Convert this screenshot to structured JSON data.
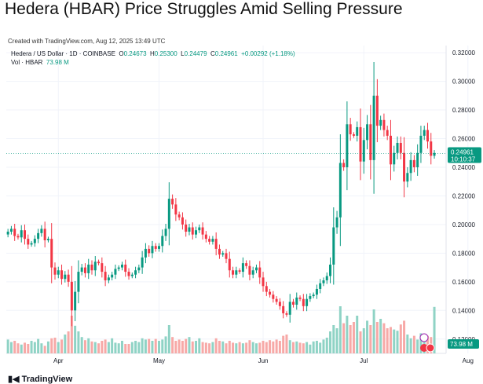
{
  "headline": "Hedera (HBAR) Price Struggles Amid Selling Pressure",
  "created_note": "Created with TradingView.com, Aug 12, 2025 13:49 UTC",
  "legend": {
    "symbol": "Hedera / US Dollar · 1D · COINBASE",
    "o_label": "O",
    "o": "0.24673",
    "h_label": "H",
    "h": "0.25300",
    "l_label": "L",
    "l": "0.24479",
    "c_label": "C",
    "c": "0.24961",
    "change": "+0.00292 (+1.18%)",
    "vol_label": "Vol · HBAR",
    "vol": "73.98 M"
  },
  "price_badge": {
    "value": "0.24961",
    "countdown": "10:10:37"
  },
  "vol_badge": "73.98 M",
  "brand": "TradingView",
  "colors": {
    "up": "#089981",
    "down": "#f23645",
    "up_vol": "#8fd3c5",
    "down_vol": "#f7a9a7",
    "grid": "#f0f3fa",
    "axis_text": "#131722"
  },
  "chart_data": {
    "type": "candlestick",
    "symbol": "HBAR/USD",
    "timeframe": "1D",
    "x_tick_labels": [
      "Apr",
      "May",
      "Jun",
      "Jul",
      "Aug"
    ],
    "y_tick_labels": [
      "0.32000",
      "0.30000",
      "0.28000",
      "0.26000",
      "0.24000",
      "0.22000",
      "0.20000",
      "0.18000",
      "0.16000",
      "0.14000",
      "0.12000"
    ],
    "ylim": [
      0.11,
      0.325
    ],
    "last_price": 0.24961,
    "grid": true,
    "close": [
      0.195,
      0.197,
      0.192,
      0.191,
      0.196,
      0.19,
      0.186,
      0.187,
      0.19,
      0.194,
      0.197,
      0.189,
      0.19,
      0.17,
      0.165,
      0.168,
      0.162,
      0.165,
      0.16,
      0.14,
      0.153,
      0.167,
      0.17,
      0.166,
      0.172,
      0.168,
      0.174,
      0.173,
      0.167,
      0.161,
      0.163,
      0.165,
      0.169,
      0.17,
      0.172,
      0.167,
      0.164,
      0.165,
      0.168,
      0.17,
      0.177,
      0.183,
      0.18,
      0.185,
      0.183,
      0.185,
      0.192,
      0.197,
      0.218,
      0.214,
      0.207,
      0.205,
      0.2,
      0.195,
      0.198,
      0.193,
      0.196,
      0.198,
      0.193,
      0.19,
      0.188,
      0.19,
      0.183,
      0.179,
      0.18,
      0.176,
      0.168,
      0.165,
      0.168,
      0.167,
      0.173,
      0.171,
      0.165,
      0.168,
      0.17,
      0.163,
      0.157,
      0.153,
      0.151,
      0.148,
      0.146,
      0.143,
      0.138,
      0.137,
      0.146,
      0.144,
      0.149,
      0.148,
      0.143,
      0.148,
      0.15,
      0.151,
      0.155,
      0.159,
      0.161,
      0.164,
      0.172,
      0.198,
      0.205,
      0.243,
      0.24,
      0.27,
      0.263,
      0.262,
      0.268,
      0.244,
      0.259,
      0.27,
      0.245,
      0.29,
      0.269,
      0.273,
      0.266,
      0.262,
      0.242,
      0.25,
      0.257,
      0.25,
      0.23,
      0.236,
      0.245,
      0.24,
      0.25,
      0.262,
      0.266,
      0.258,
      0.248,
      0.25
    ],
    "volume_M": [
      22,
      18,
      20,
      16,
      14,
      17,
      15,
      20,
      18,
      23,
      16,
      12,
      19,
      24,
      25,
      18,
      22,
      30,
      35,
      60,
      44,
      35,
      26,
      21,
      24,
      19,
      18,
      16,
      20,
      22,
      18,
      24,
      17,
      16,
      20,
      15,
      15,
      18,
      20,
      18,
      24,
      22,
      23,
      20,
      23,
      20,
      22,
      27,
      45,
      26,
      20,
      22,
      20,
      23,
      26,
      19,
      20,
      24,
      18,
      17,
      16,
      18,
      24,
      20,
      19,
      16,
      20,
      17,
      16,
      18,
      16,
      17,
      21,
      18,
      16,
      17,
      20,
      18,
      21,
      19,
      22,
      20,
      28,
      30,
      21,
      18,
      19,
      17,
      16,
      18,
      14,
      19,
      20,
      17,
      22,
      25,
      35,
      45,
      40,
      75,
      48,
      60,
      45,
      50,
      60,
      35,
      40,
      52,
      45,
      70,
      50,
      55,
      48,
      40,
      42,
      38,
      36,
      46,
      52,
      30,
      24,
      28,
      22,
      32,
      30,
      28,
      26,
      74
    ]
  }
}
